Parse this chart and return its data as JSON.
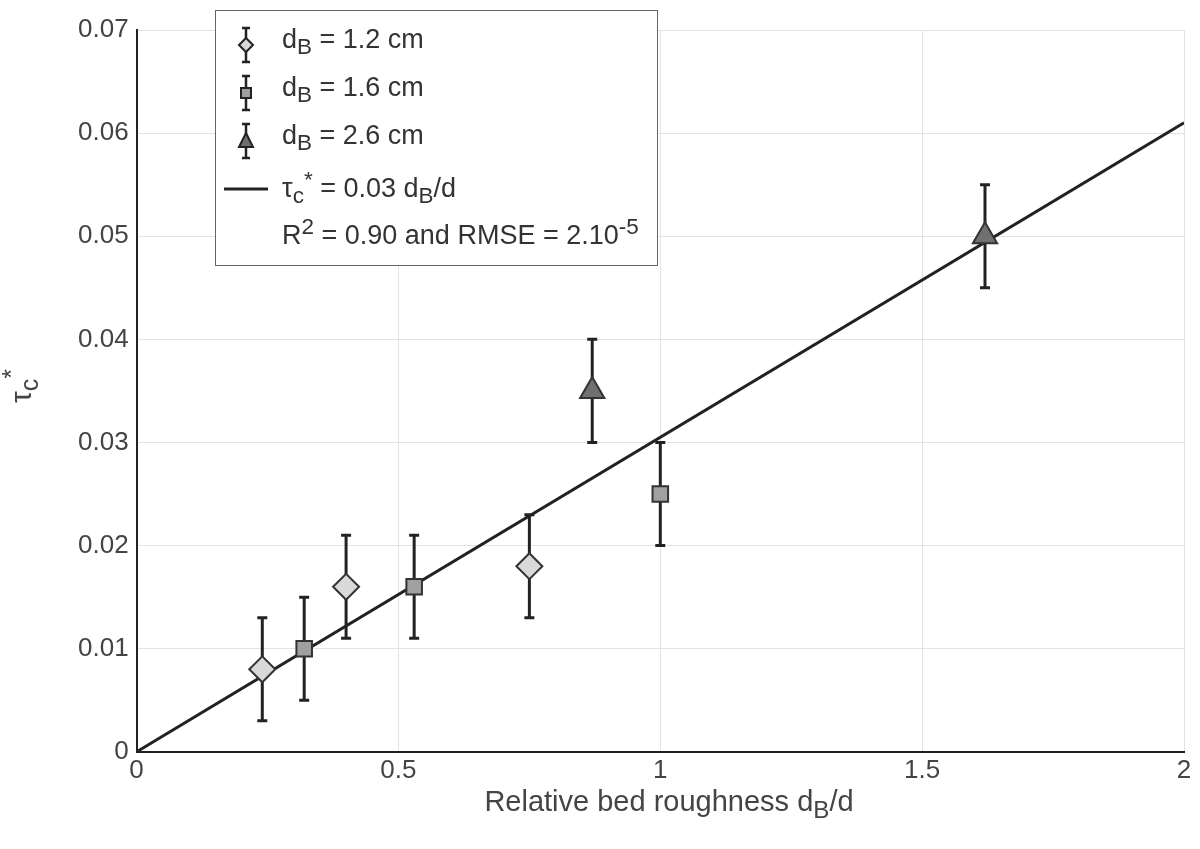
{
  "chart_data": {
    "type": "scatter",
    "xlabel": "Relative bed roughness d$_{B}$/d",
    "ylabel": "τ$_{c}$$^{*}$",
    "xlim": [
      0,
      2
    ],
    "xticks": [
      0,
      0.5,
      1,
      1.5,
      2
    ],
    "ylim": [
      0,
      0.07
    ],
    "yticks": [
      0,
      0.01,
      0.02,
      0.03,
      0.04,
      0.05,
      0.06,
      0.07
    ],
    "grid": true,
    "legend": "top left",
    "series": [
      {
        "name": "d$_{B}$ = 1.2 cm",
        "marker": "diamond",
        "color": "#d9d9d9",
        "x": [
          0.24,
          0.4,
          0.75
        ],
        "values": [
          0.008,
          0.016,
          0.018
        ],
        "errors": [
          0.005,
          0.005,
          0.005
        ]
      },
      {
        "name": "d$_{B}$ = 1.6 cm",
        "marker": "square",
        "color": "#a0a0a0",
        "x": [
          0.32,
          0.53,
          1.0
        ],
        "values": [
          0.01,
          0.016,
          0.025
        ],
        "errors": [
          0.005,
          0.005,
          0.005
        ]
      },
      {
        "name": "d$_{B}$ = 2.6 cm",
        "marker": "triangle",
        "color": "#707070",
        "x": [
          0.87,
          1.62
        ],
        "values": [
          0.035,
          0.05
        ],
        "errors": [
          0.005,
          0.005
        ]
      },
      {
        "name": "τ$_{c}$$^{*}$ = 0.03 d$_{B}$/d\nR$^{2}$ = 0.90 and RMSE = 2.10$^{-5}$",
        "type": "line",
        "marker": "none",
        "line_style": "solid",
        "color": "#222222",
        "x": [
          0,
          2
        ],
        "values": [
          0,
          0.061
        ]
      }
    ]
  }
}
